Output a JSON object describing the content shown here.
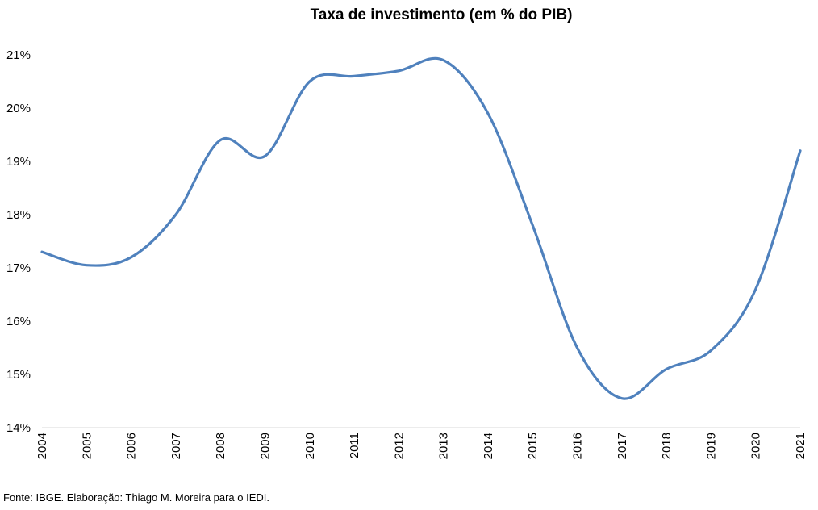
{
  "chart_data": {
    "type": "line",
    "title": "Taxa de investimento (em % do PIB)",
    "xlabel": "",
    "ylabel": "",
    "x": [
      "2004",
      "2005",
      "2006",
      "2007",
      "2008",
      "2009",
      "2010",
      "2011",
      "2012",
      "2013",
      "2014",
      "2015",
      "2016",
      "2017",
      "2018",
      "2019",
      "2020",
      "2021"
    ],
    "series": [
      {
        "values": [
          17.3,
          17.05,
          17.2,
          18.0,
          19.4,
          19.1,
          20.5,
          20.6,
          20.7,
          20.9,
          19.9,
          17.8,
          15.5,
          14.55,
          15.1,
          15.45,
          16.6,
          19.2
        ]
      }
    ],
    "ylim": [
      14,
      21
    ],
    "yticks": [
      "14%",
      "15%",
      "16%",
      "17%",
      "18%",
      "19%",
      "20%",
      "21%"
    ],
    "line_color": "#4F81BD",
    "grid": false,
    "legend": "none"
  },
  "source": "Fonte: IBGE. Elaboração: Thiago M. Moreira para o IEDI."
}
